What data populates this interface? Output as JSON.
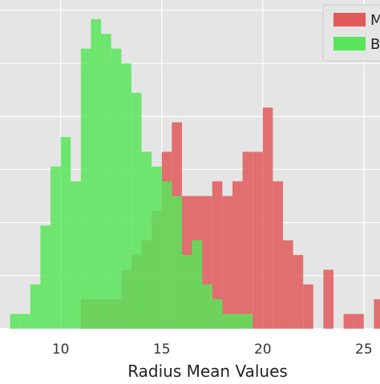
{
  "chart_data": {
    "type": "bar",
    "title": "",
    "xlabel": "Radius Mean Values",
    "ylabel": "",
    "xlim": [
      7.0,
      25.8
    ],
    "ylim": [
      0,
      22.3
    ],
    "grid": true,
    "legend_position": "top-right",
    "x_ticks": [
      10,
      15,
      20,
      25
    ],
    "x_tick_labels": [
      "10",
      "15",
      "20",
      "25"
    ],
    "y_ticks": [
      0,
      3.6,
      7.2,
      10.8,
      14.4,
      18.0,
      21.6
    ],
    "bin_edges": [
      7.0,
      7.5,
      8.0,
      8.5,
      9.0,
      9.5,
      10.0,
      10.5,
      11.0,
      11.5,
      12.0,
      12.5,
      13.0,
      13.5,
      14.0,
      14.5,
      15.0,
      15.5,
      16.0,
      16.5,
      17.0,
      17.5,
      18.0,
      18.5,
      19.0,
      19.5,
      20.0,
      20.5,
      21.0,
      21.5,
      22.0,
      22.5,
      23.0,
      23.5,
      24.0,
      24.5,
      25.0,
      25.5,
      26.0
    ],
    "series": [
      {
        "name": "M",
        "color": "#e15a5a",
        "values": [
          0,
          0,
          0,
          0,
          0,
          0,
          0,
          0,
          2,
          2,
          2,
          2,
          4,
          5,
          6,
          8,
          12,
          14,
          9,
          9,
          9,
          10,
          9,
          10,
          12,
          12,
          15,
          10,
          6,
          5,
          3,
          0,
          4,
          0,
          1,
          1,
          0,
          2
        ]
      },
      {
        "name": "B",
        "color": "#59e55a",
        "values": [
          0,
          1,
          1,
          3,
          7,
          11,
          13,
          10,
          19,
          21,
          20,
          19,
          18,
          16,
          12,
          11,
          10,
          9,
          5,
          6,
          3,
          2,
          1,
          1,
          1,
          0,
          0,
          0,
          0,
          0,
          0,
          0,
          0,
          0,
          0,
          0,
          0,
          0
        ]
      }
    ]
  }
}
